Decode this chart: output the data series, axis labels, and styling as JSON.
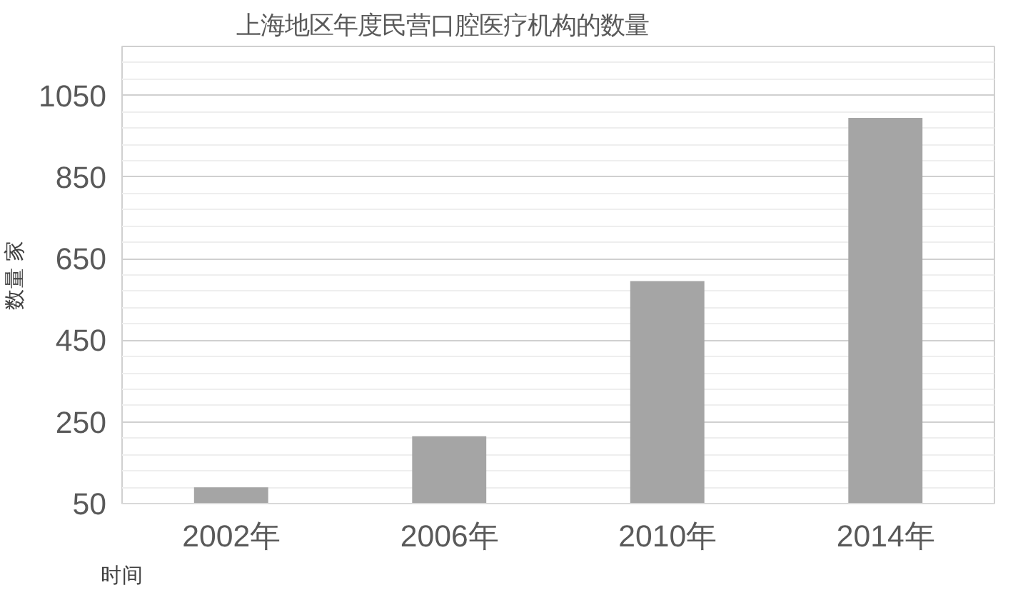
{
  "chart_data": {
    "type": "bar",
    "title": "上海地区年度民营口腔医疗机构的数量",
    "xlabel": "时间",
    "ylabel": "数量 家",
    "categories": [
      "2002年",
      "2006年",
      "2010年",
      "2014年"
    ],
    "values": [
      90,
      215,
      595,
      995
    ],
    "color": "#a5a5a5",
    "ylim": [
      50,
      1170
    ],
    "yticks": [
      50,
      250,
      450,
      650,
      850,
      1050
    ],
    "grid": "y"
  }
}
